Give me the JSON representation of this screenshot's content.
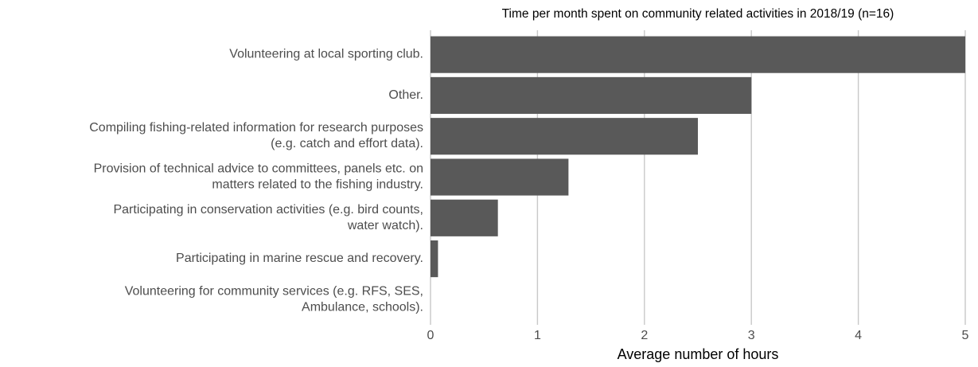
{
  "chart_data": {
    "type": "bar",
    "orientation": "horizontal",
    "title": "Time per month spent on community related activities in 2018/19 (n=16)",
    "x_label": "Average number of hours",
    "categories": [
      "Volunteering at local sporting club.",
      "Other.",
      "Compiling fishing-related information for research purposes\n(e.g. catch and effort data).",
      "Provision of technical advice to committees, panels etc. on\nmatters related to the fishing industry.",
      "Participating in conservation activities (e.g. bird counts,\nwater watch).",
      "Participating in marine rescue and recovery.",
      "Volunteering for community services (e.g. RFS, SES,\nAmbulance, schools)."
    ],
    "values": [
      5,
      3,
      2.5,
      1.29,
      0.63,
      0.07,
      0
    ],
    "color": "#595959",
    "xlim": [
      0,
      5
    ],
    "xticks": [
      0,
      1,
      2,
      3,
      4,
      5
    ],
    "grid": true
  }
}
